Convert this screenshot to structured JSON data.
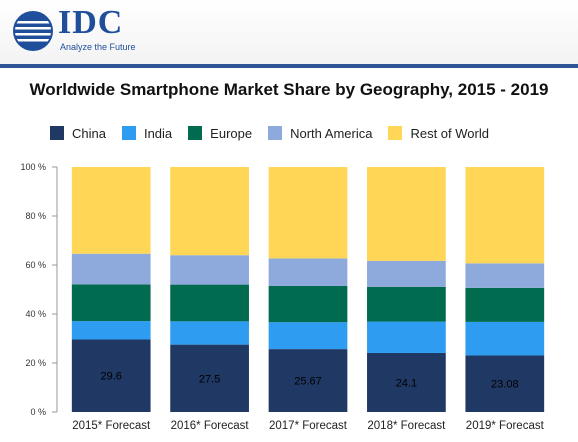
{
  "header": {
    "logo_text": "IDC",
    "logo_tagline": "Analyze the Future"
  },
  "colors": {
    "China": "#1f3864",
    "India": "#2e9cf0",
    "Europe": "#006b4f",
    "North America": "#8ea9db",
    "Rest of World": "#ffd655"
  },
  "chart_data": {
    "type": "bar",
    "stacked": true,
    "title": "Worldwide Smartphone Market Share by Geography, 2015 - 2019",
    "categories": [
      "2015* Forecast",
      "2016* Forecast",
      "2017* Forecast",
      "2018* Forecast",
      "2019* Forecast"
    ],
    "series": [
      {
        "name": "China",
        "values": [
          29.6,
          27.5,
          25.67,
          24.1,
          23.08
        ]
      },
      {
        "name": "India",
        "values": [
          7.5,
          9.5,
          11.0,
          12.8,
          13.7
        ]
      },
      {
        "name": "Europe",
        "values": [
          15.0,
          15.0,
          14.8,
          14.2,
          13.9
        ]
      },
      {
        "name": "North America",
        "values": [
          12.5,
          12.0,
          11.2,
          10.6,
          10.0
        ]
      },
      {
        "name": "Rest of World",
        "values": [
          35.4,
          36.0,
          37.33,
          38.3,
          39.32
        ]
      }
    ],
    "data_labels": [
      "29.6",
      "27.5",
      "25.67",
      "24.1",
      "23.08"
    ],
    "yticks": [
      "0 %",
      "20 %",
      "40 %",
      "60 %",
      "80 %",
      "100 %"
    ],
    "ylim": [
      0,
      100
    ],
    "legend_position": "top"
  }
}
